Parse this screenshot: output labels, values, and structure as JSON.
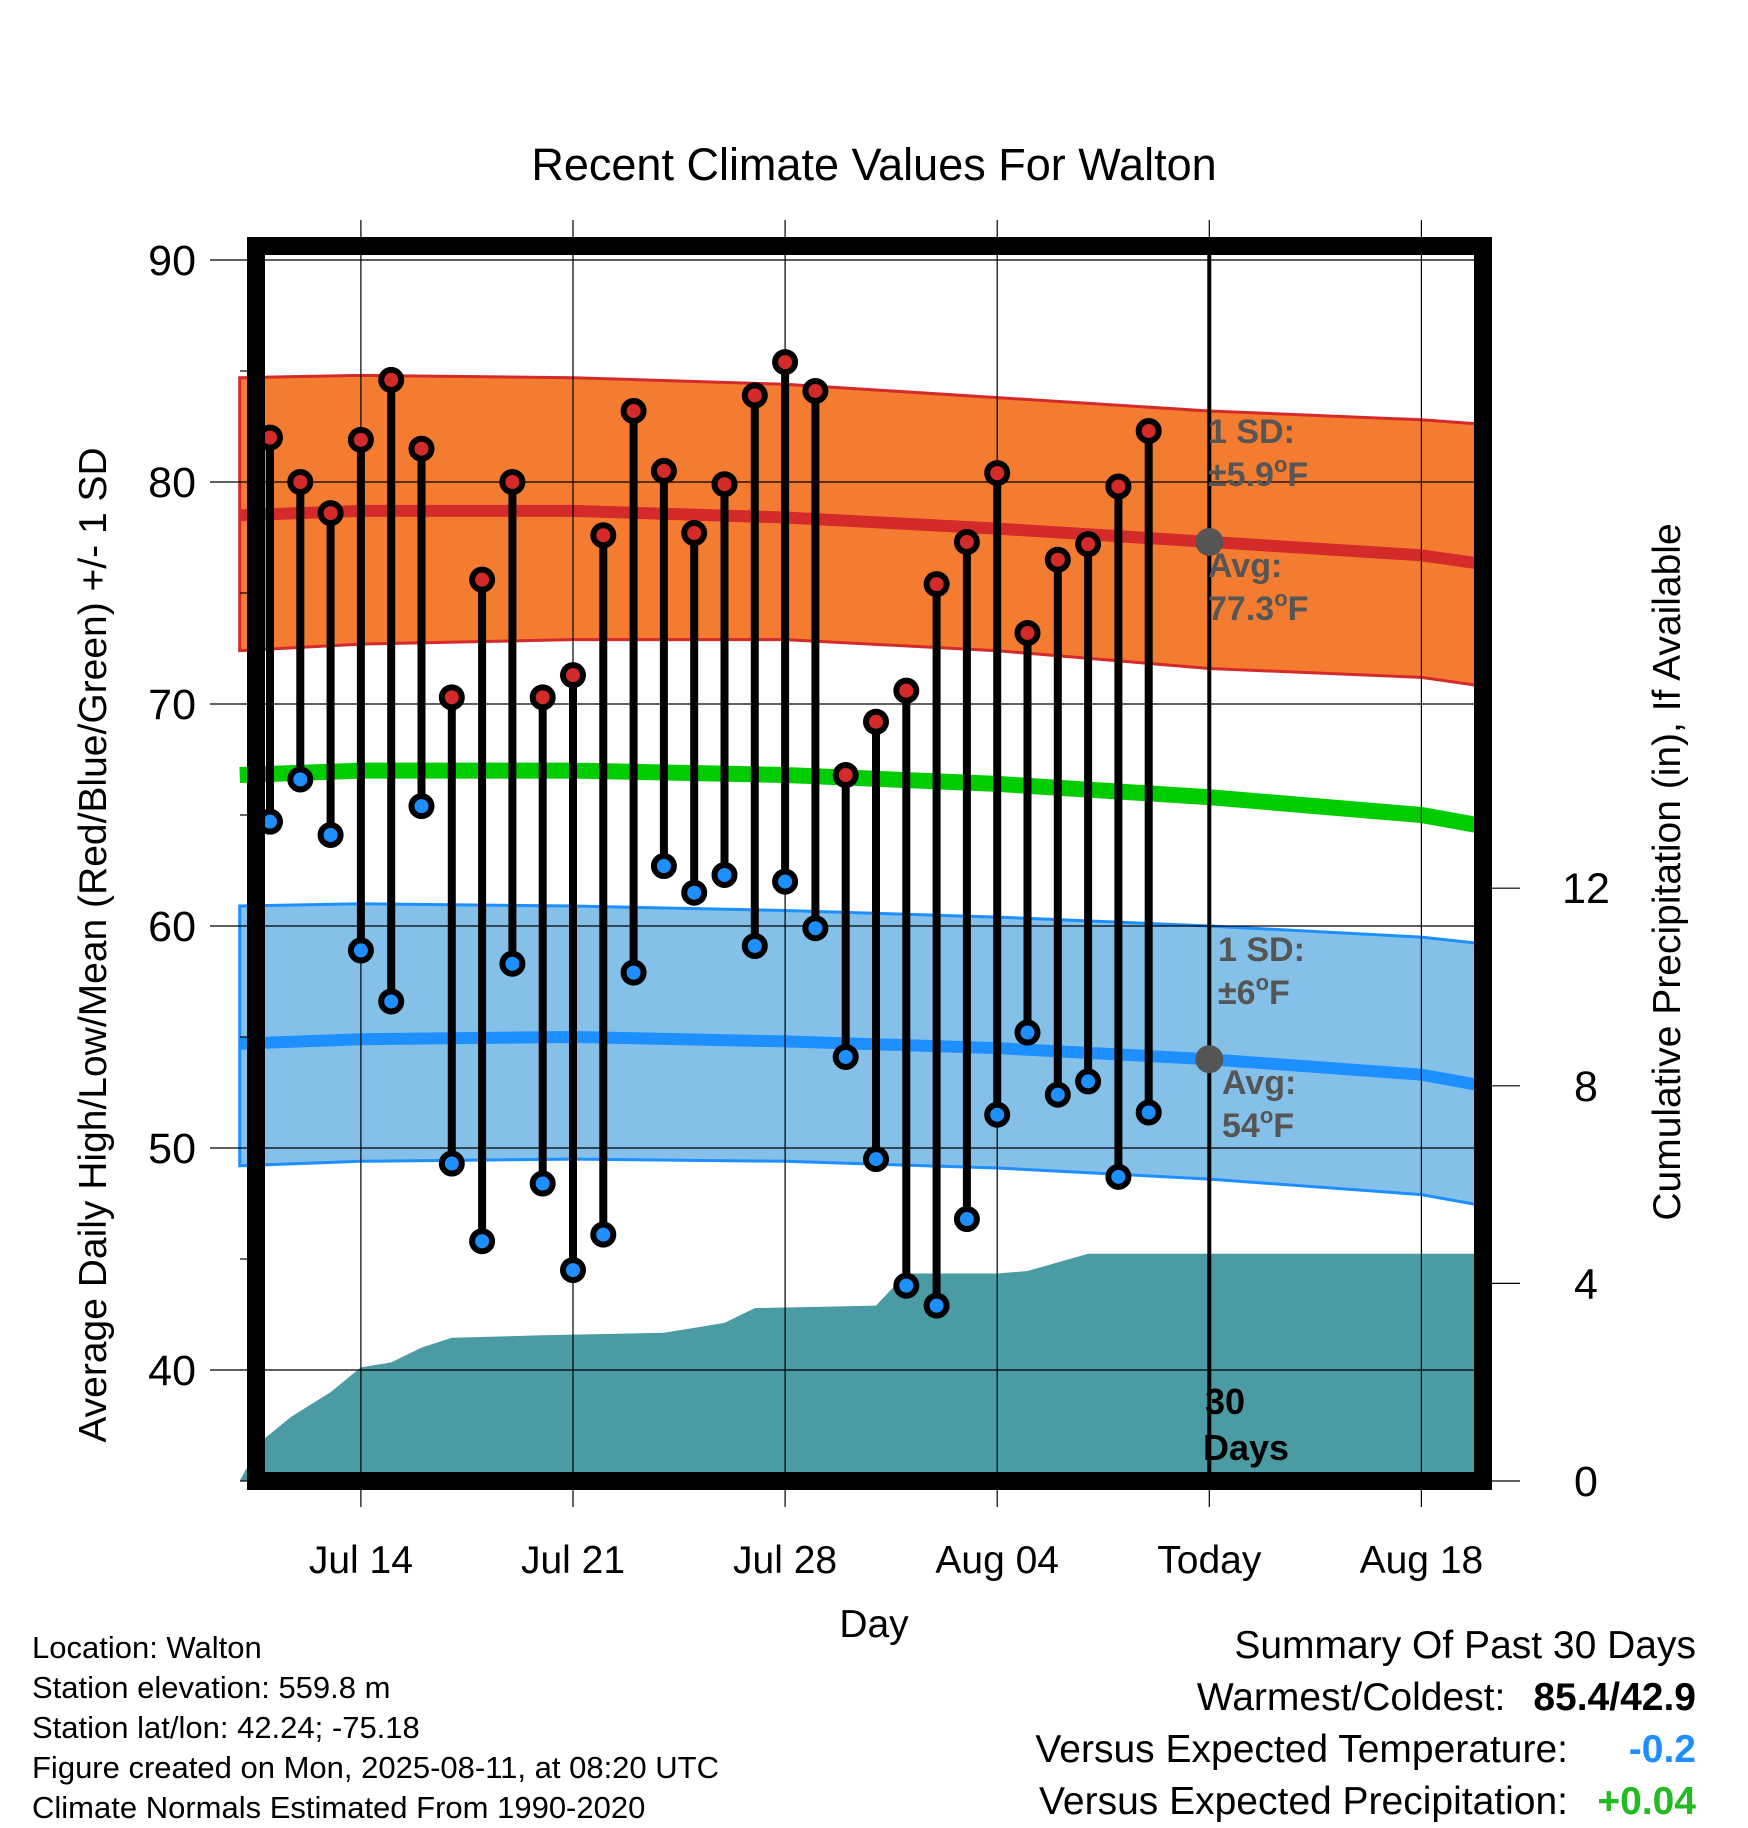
{
  "chart_data": {
    "type": "line",
    "title": "Recent Climate Values For Walton",
    "xlabel": "Day",
    "ylabel": "Average Daily High/Low/Mean (Red/Blue/Green) +/- 1 SD",
    "y2label": "Cumulative Precipitation (in), If Available",
    "ylim": [
      35,
      90
    ],
    "yticks": [
      40,
      50,
      60,
      70,
      80,
      90
    ],
    "y2lim": [
      0,
      16
    ],
    "y2ticks": [
      0,
      4,
      8,
      12
    ],
    "xlim": [
      "Jul 10",
      "Aug 21"
    ],
    "xtick_labels": [
      {
        "date": "Jul 14",
        "label": "Jul 14"
      },
      {
        "date": "Jul 21",
        "label": "Jul 21"
      },
      {
        "date": "Jul 28",
        "label": "Jul 28"
      },
      {
        "date": "Aug 04",
        "label": "Aug 04"
      },
      {
        "date": "Aug 11",
        "label": "Today"
      },
      {
        "date": "Aug 18",
        "label": "Aug 18"
      }
    ],
    "grid": true,
    "colors": {
      "high": "#d42a2a",
      "high_band": "#f37c30",
      "low": "#1e8fff",
      "low_band": "#84c0e8",
      "mean": "#00cc00",
      "precip": "#4a9ba4",
      "high_marker": "#d42a2a",
      "low_marker": "#1e8fff"
    },
    "normals": {
      "dates": [
        "Jul 10",
        "Jul 14",
        "Jul 21",
        "Jul 28",
        "Aug 04",
        "Aug 11",
        "Aug 18",
        "Aug 21"
      ],
      "high_avg": [
        78.5,
        78.7,
        78.7,
        78.4,
        77.9,
        77.3,
        76.7,
        76.3
      ],
      "high_upper": [
        84.7,
        84.8,
        84.7,
        84.4,
        83.8,
        83.2,
        82.8,
        82.6
      ],
      "high_lower": [
        72.4,
        72.7,
        72.9,
        72.9,
        72.4,
        71.6,
        71.2,
        70.8
      ],
      "low_avg": [
        54.7,
        54.9,
        55.0,
        54.8,
        54.5,
        54.0,
        53.3,
        52.8
      ],
      "low_upper": [
        60.9,
        61.0,
        60.9,
        60.7,
        60.4,
        60.0,
        59.5,
        59.2
      ],
      "low_lower": [
        49.2,
        49.4,
        49.5,
        49.4,
        49.1,
        48.6,
        47.9,
        47.4
      ],
      "mean": [
        66.8,
        67.0,
        67.0,
        66.8,
        66.4,
        65.8,
        65.0,
        64.5
      ]
    },
    "daily": {
      "dates": [
        "Jul 11",
        "Jul 12",
        "Jul 13",
        "Jul 14",
        "Jul 15",
        "Jul 16",
        "Jul 17",
        "Jul 18",
        "Jul 19",
        "Jul 20",
        "Jul 21",
        "Jul 22",
        "Jul 23",
        "Jul 24",
        "Jul 25",
        "Jul 26",
        "Jul 27",
        "Jul 28",
        "Jul 29",
        "Jul 30",
        "Jul 31",
        "Aug 01",
        "Aug 02",
        "Aug 03",
        "Aug 04",
        "Aug 05",
        "Aug 06",
        "Aug 07",
        "Aug 08",
        "Aug 09",
        "Aug 10"
      ],
      "high": [
        82.0,
        80.0,
        78.6,
        81.9,
        84.6,
        81.5,
        70.3,
        75.6,
        80.0,
        70.3,
        71.3,
        77.6,
        83.2,
        80.5,
        77.7,
        79.9,
        83.9,
        85.4,
        84.1,
        66.8,
        69.2,
        70.6,
        75.4,
        77.3,
        80.4,
        73.2,
        76.5,
        77.2,
        79.8,
        82.3,
        null
      ],
      "low": [
        64.7,
        66.6,
        64.1,
        58.9,
        56.6,
        65.4,
        49.3,
        45.8,
        58.3,
        48.4,
        44.5,
        46.1,
        57.9,
        62.7,
        61.5,
        62.3,
        59.1,
        62.0,
        59.9,
        54.1,
        49.5,
        43.8,
        42.9,
        46.8,
        51.5,
        55.2,
        52.4,
        53.0,
        48.7,
        51.6,
        null
      ]
    },
    "precip_cumulative": {
      "dates": [
        "Jul 10",
        "Jul 10.7",
        "Jul 11.7",
        "Jul 13",
        "Jul 14",
        "Jul 15",
        "Jul 16",
        "Jul 17",
        "Jul 20",
        "Jul 24",
        "Jul 25",
        "Jul 26",
        "Jul 27",
        "Jul 31",
        "Aug 01",
        "Aug 04",
        "Aug 05",
        "Aug 07",
        "Aug 11",
        "Aug 21"
      ],
      "values": [
        0.0,
        0.8,
        1.3,
        1.8,
        2.3,
        2.4,
        2.7,
        2.9,
        2.95,
        3.0,
        3.1,
        3.2,
        3.5,
        3.55,
        4.2,
        4.2,
        4.25,
        4.6,
        4.6,
        4.6
      ]
    },
    "annotations": {
      "high_sd_label": "1 SD:",
      "high_sd_value": "±5.9",
      "high_avg_label": "Avg:",
      "high_avg_value": "77.3",
      "low_sd_label": "1 SD:",
      "low_sd_value": "±6",
      "low_avg_label": "Avg:",
      "low_avg_value": "54",
      "degree_unit": "o",
      "temp_unit": "F",
      "period_number": "30",
      "period_unit": "Days"
    }
  },
  "footer": {
    "location": "Location: Walton",
    "elevation": "Station elevation: 559.8 m",
    "latlon": "Station lat/lon: 42.24; -75.18",
    "created": "Figure created on Mon, 2025-08-11, at 08:20 UTC",
    "normals": "Climate Normals Estimated From 1990-2020"
  },
  "summary": {
    "title": "Summary Of Past 30 Days",
    "warmest_coldest_label": "Warmest/Coldest:",
    "warmest_coldest_value": "85.4/42.9",
    "temp_label": "Versus Expected Temperature:",
    "temp_value": "-0.2",
    "temp_color": "#1e8fff",
    "precip_label": "Versus Expected Precipitation:",
    "precip_value": "+0.04",
    "precip_color": "#22bb22"
  }
}
